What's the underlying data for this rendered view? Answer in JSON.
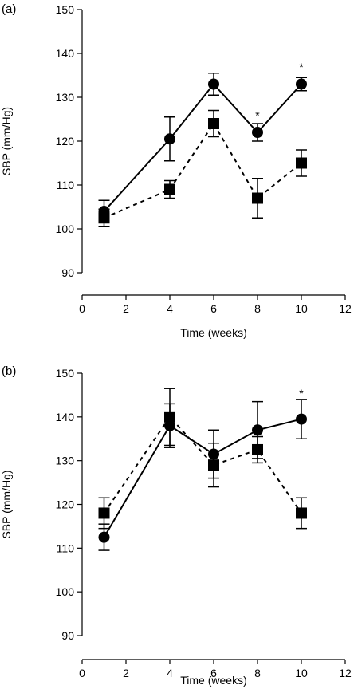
{
  "chart_data": [
    {
      "panel_label": "(a)",
      "type": "line",
      "xlabel": "Time (weeks)",
      "ylabel": "SBP (mm/Hg)",
      "xlim": [
        0,
        12
      ],
      "ylim": [
        90,
        150
      ],
      "xticks": [
        "0",
        "2",
        "4",
        "6",
        "8",
        "10",
        "12"
      ],
      "yticks": [
        "90",
        "100",
        "110",
        "120",
        "130",
        "140",
        "150"
      ],
      "x": [
        1,
        4,
        6,
        8,
        10
      ],
      "series": [
        {
          "marker": "circle",
          "line_style": "solid",
          "values": [
            104,
            120.5,
            133,
            122,
            133
          ],
          "error": [
            2.5,
            5,
            2.5,
            2,
            1.5
          ]
        },
        {
          "marker": "square",
          "line_style": "dashed",
          "values": [
            102.5,
            109,
            124,
            107,
            115
          ],
          "error": [
            2,
            2,
            3,
            4.5,
            3
          ]
        }
      ],
      "annotations": [
        {
          "text": "*",
          "x": 8,
          "y": 125
        },
        {
          "text": "*",
          "x": 10,
          "y": 136
        }
      ]
    },
    {
      "panel_label": "(b)",
      "type": "line",
      "xlabel": "Time (weeks)",
      "ylabel": "SBP (mm/Hg)",
      "xlim": [
        0,
        12
      ],
      "ylim": [
        90,
        150
      ],
      "xticks": [
        "0",
        "2",
        "4",
        "6",
        "8",
        "10",
        "12"
      ],
      "yticks": [
        "90",
        "100",
        "110",
        "120",
        "130",
        "140",
        "150"
      ],
      "x": [
        1,
        4,
        6,
        8,
        10
      ],
      "series": [
        {
          "marker": "circle",
          "line_style": "solid",
          "values": [
            112.5,
            138,
            131.5,
            137,
            139.5
          ],
          "error": [
            3,
            5,
            5.5,
            6.5,
            4.5
          ]
        },
        {
          "marker": "square",
          "line_style": "dashed",
          "values": [
            118,
            140,
            129,
            132.5,
            118
          ],
          "error": [
            3.5,
            6.5,
            5,
            3,
            3.5
          ]
        }
      ],
      "annotations": [
        {
          "text": "*",
          "x": 10,
          "y": 144.5
        }
      ]
    }
  ]
}
